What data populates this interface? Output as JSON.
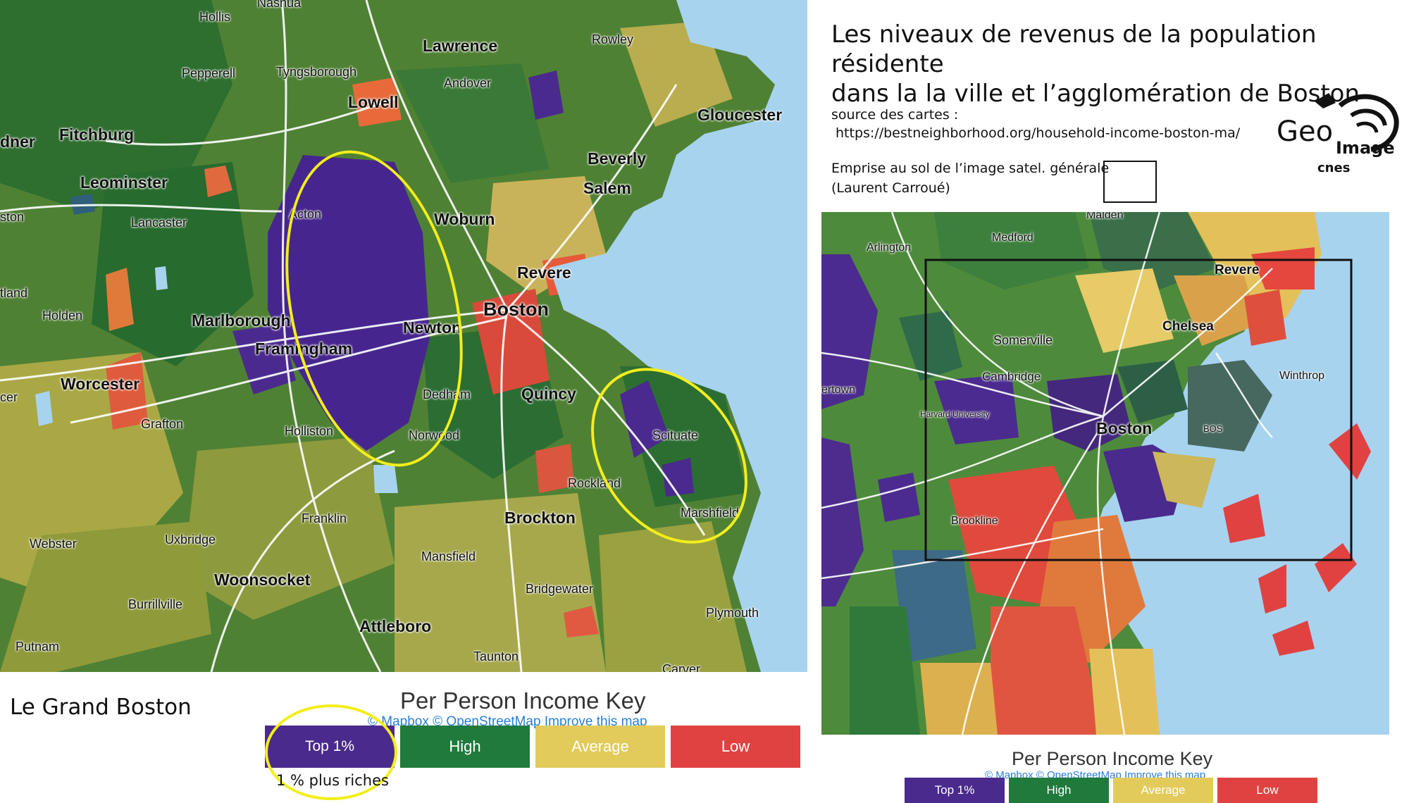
{
  "title_line1": "Les niveaux de revenus de la population résidente",
  "title_line2": "dans la la ville et l’agglomération de Boston",
  "source_label": "source des cartes :",
  "source_url": "https://bestneighborhood.org/household-income-boston-ma/",
  "emprise_line1": "Emprise au sol de l’image satel. générale",
  "emprise_line2": "(Laurent Carroué)",
  "logo": {
    "text": "Geo",
    "sub": "Image",
    "partner": "cnes"
  },
  "left_caption": "Le Grand Boston",
  "key": {
    "title": "Per Person Income Key",
    "credit": "© Mapbox © OpenStreetMap Improve this map",
    "annotation": "1 % plus riches",
    "items": [
      {
        "label": "Top 1%",
        "color": "#4a2a8c"
      },
      {
        "label": "High",
        "color": "#1f7a3b"
      },
      {
        "label": "Average",
        "color": "#e2cb5a"
      },
      {
        "label": "Low",
        "color": "#e04242"
      }
    ]
  },
  "left_places": [
    "Nashua",
    "Hollis",
    "Lawrence",
    "Rowley",
    "Pepperell",
    "Tyngsborough",
    "Andover",
    "Lowell",
    "Gloucester",
    "Fitchburg",
    "Leominster",
    "Beverly",
    "Salem",
    "Acton",
    "Woburn",
    "Lancaster",
    "Revere",
    "Holden",
    "Marlborough",
    "Newton",
    "Boston",
    "Framingham",
    "Worcester",
    "Dedham",
    "Quincy",
    "Grafton",
    "Holliston",
    "Norwood",
    "Scituate",
    "Rockland",
    "Franklin",
    "Brockton",
    "Marshfield",
    "Webster",
    "Uxbridge",
    "Mansfield",
    "Woonsocket",
    "Bridgewater",
    "Burrillville",
    "Plymouth",
    "Attleboro",
    "Putnam",
    "Taunton",
    "Carver",
    "dner",
    "ston",
    "tland",
    "cer"
  ],
  "right_places": [
    "Malden",
    "Medford",
    "Arlington",
    "Revere",
    "Chelsea",
    "Somerville",
    "Winthrop",
    "Cambridge",
    "ertown",
    "Harvard University",
    "Boston",
    "BOS",
    "Brookline"
  ]
}
